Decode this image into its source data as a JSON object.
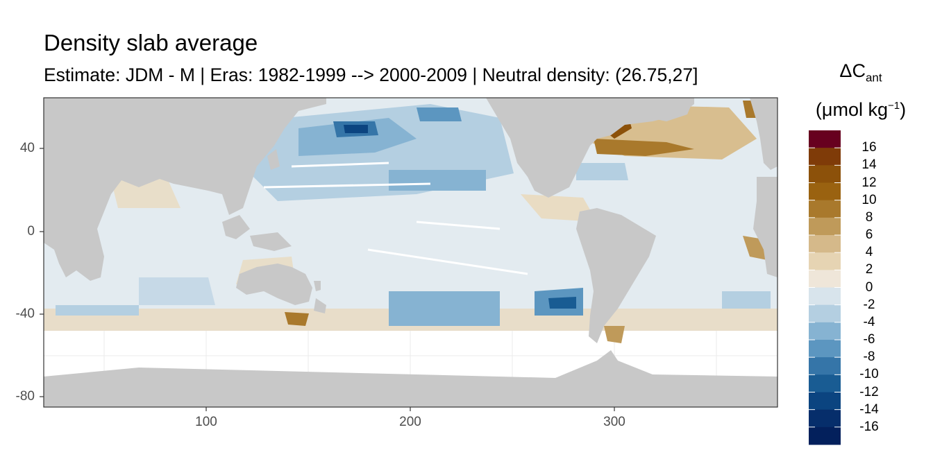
{
  "title": "Density slab average",
  "subtitle": "Estimate: JDM - M | Eras: 1982-1999 --> 2000-2009 | Neutral density: (26.75,27]",
  "legend": {
    "title_main": "ΔC",
    "title_sub": "ant",
    "unit_pre": "(μmol kg",
    "unit_sup": "−1",
    "unit_post": ")",
    "labels": [
      "16",
      "14",
      "12",
      "10",
      "8",
      "6",
      "4",
      "2",
      "0",
      "-2",
      "-4",
      "-6",
      "-8",
      "-10",
      "-12",
      "-14",
      "-16"
    ],
    "colors": [
      "#67001f",
      "#7f3b08",
      "#8c510a",
      "#9a6210",
      "#a9792c",
      "#bf9a5a",
      "#d5b98a",
      "#e6d4b3",
      "#efe6d9",
      "#d8e4ec",
      "#b4cfe1",
      "#86b3d2",
      "#5c96c0",
      "#3575a8",
      "#195c93",
      "#0b4480",
      "#062e6b",
      "#03205c"
    ]
  },
  "axes": {
    "x_ticks": [
      "100",
      "200",
      "300"
    ],
    "y_ticks": [
      "40",
      "0",
      "-40",
      "-80"
    ]
  },
  "map": {
    "land_color": "#c8c8c8",
    "nodata_color": "#ffffff",
    "panel_border": "#333333",
    "grid_color": "#ebebeb"
  }
}
